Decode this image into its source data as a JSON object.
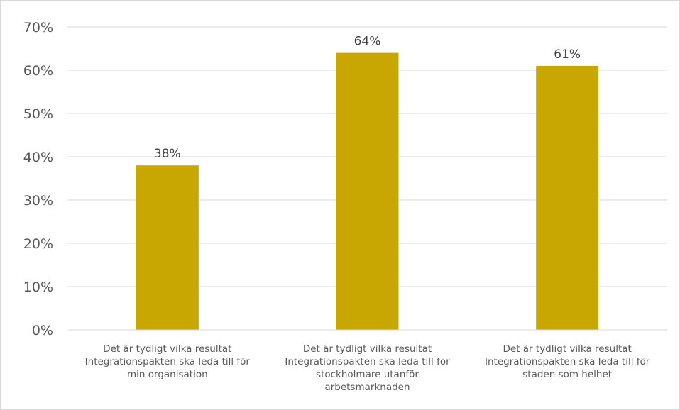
{
  "chart_data": {
    "type": "bar",
    "categories": [
      [
        "Det är tydligt vilka resultat",
        "Integrationspakten ska leda till för",
        "min organisation"
      ],
      [
        "Det är tydligt vilka resultat",
        "Integrationspakten ska leda till för",
        "stockholmare utanför",
        "arbetsmarknaden"
      ],
      [
        "Det är tydligt vilka resultat",
        "Integrationspakten ska leda till för",
        "staden som helhet"
      ]
    ],
    "values": [
      38,
      64,
      61
    ],
    "data_labels": [
      "38%",
      "64%",
      "61%"
    ],
    "ylim": [
      0,
      70
    ],
    "yticks": [
      "0%",
      "10%",
      "20%",
      "30%",
      "40%",
      "50%",
      "60%",
      "70%"
    ],
    "ytick_values": [
      0,
      10,
      20,
      30,
      40,
      50,
      60,
      70
    ],
    "grid": true,
    "colors": {
      "bar": "#c8a702",
      "grid": "#d9d9d9",
      "text": "#595959"
    },
    "title": "",
    "xlabel": "",
    "ylabel": ""
  }
}
